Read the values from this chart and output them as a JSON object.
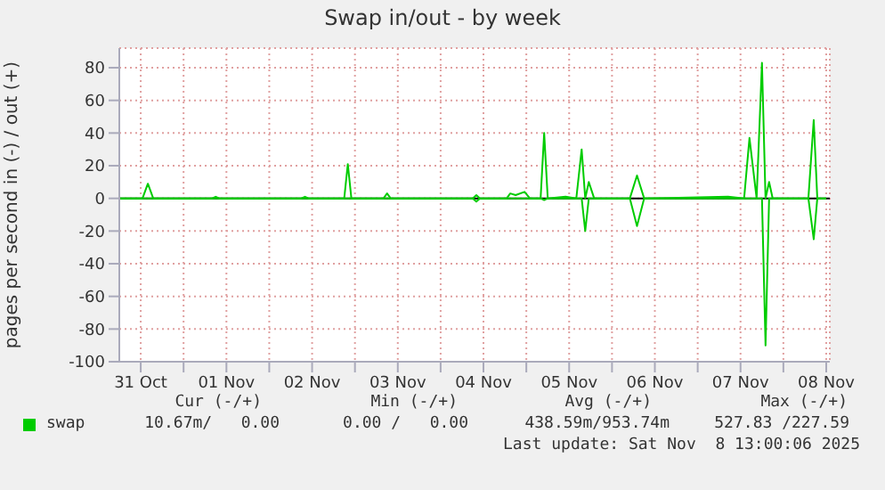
{
  "chart_data": {
    "type": "line",
    "title": "Swap in/out - by week",
    "ylabel": "pages per second in (-) / out (+)",
    "x": [
      "2025-10-31T06:00",
      "2025-10-31T12:30",
      "2025-10-31T14:00",
      "2025-10-31T15:30",
      "2025-11-01T08:00",
      "2025-11-01T09:00",
      "2025-11-01T10:00",
      "2025-11-02T09:00",
      "2025-11-02T10:00",
      "2025-11-02T11:00",
      "2025-11-02T21:00",
      "2025-11-02T22:00",
      "2025-11-02T23:00",
      "2025-11-03T08:00",
      "2025-11-03T09:00",
      "2025-11-03T10:00",
      "2025-11-04T09:00",
      "2025-11-04T10:00",
      "2025-11-04T11:00",
      "2025-11-04T18:30",
      "2025-11-04T19:30",
      "2025-11-04T21:00",
      "2025-11-04T23:30",
      "2025-11-05T01:00",
      "2025-11-05T04:00",
      "2025-11-05T05:00",
      "2025-11-05T06:00",
      "2025-11-05T11:00",
      "2025-11-05T14:00",
      "2025-11-05T15:30",
      "2025-11-05T16:30",
      "2025-11-05T17:30",
      "2025-11-05T19:00",
      "2025-11-06T05:00",
      "2025-11-06T07:00",
      "2025-11-06T09:00",
      "2025-11-07T08:30",
      "2025-11-07T13:00",
      "2025-11-07T14:30",
      "2025-11-07T16:30",
      "2025-11-07T18:00",
      "2025-11-07T19:00",
      "2025-11-07T20:00",
      "2025-11-07T21:00",
      "2025-11-08T07:00",
      "2025-11-08T08:30",
      "2025-11-08T09:30",
      "2025-11-08T12:00"
    ],
    "series": [
      {
        "name": "swap",
        "color": "#00cc00",
        "values": [
          0,
          0,
          9,
          0,
          0,
          1,
          0,
          0,
          1,
          0,
          0,
          21,
          0,
          0,
          3,
          0,
          0,
          2,
          0,
          0,
          3,
          2,
          4,
          0,
          0,
          40,
          0,
          1,
          0,
          30,
          0,
          10,
          0,
          0,
          14,
          0,
          1,
          0,
          37,
          0,
          83,
          0,
          10,
          0,
          0,
          48,
          0,
          0
        ]
      },
      {
        "color": "#00cc00",
        "values": [
          0,
          0,
          0,
          0,
          0,
          0,
          0,
          0,
          0,
          0,
          0,
          0,
          0,
          0,
          0,
          0,
          0,
          -2,
          0,
          0,
          0,
          0,
          0,
          0,
          0,
          -1,
          0,
          0,
          0,
          0,
          -20,
          0,
          0,
          0,
          -17,
          0,
          0,
          0,
          0,
          0,
          0,
          -90,
          0,
          0,
          0,
          -25,
          0,
          0
        ]
      }
    ],
    "xlim": [
      "2025-10-31T06:00",
      "2025-11-08T13:00"
    ],
    "xticks": [
      {
        "value": "2025-10-31T12:00",
        "label": "31 Oct"
      },
      {
        "value": "2025-11-01T00:00",
        "label": null
      },
      {
        "value": "2025-11-01T12:00",
        "label": "01 Nov"
      },
      {
        "value": "2025-11-02T00:00",
        "label": null
      },
      {
        "value": "2025-11-02T12:00",
        "label": "02 Nov"
      },
      {
        "value": "2025-11-03T00:00",
        "label": null
      },
      {
        "value": "2025-11-03T12:00",
        "label": "03 Nov"
      },
      {
        "value": "2025-11-04T00:00",
        "label": null
      },
      {
        "value": "2025-11-04T12:00",
        "label": "04 Nov"
      },
      {
        "value": "2025-11-05T00:00",
        "label": null
      },
      {
        "value": "2025-11-05T12:00",
        "label": "05 Nov"
      },
      {
        "value": "2025-11-06T00:00",
        "label": null
      },
      {
        "value": "2025-11-06T12:00",
        "label": "06 Nov"
      },
      {
        "value": "2025-11-07T00:00",
        "label": null
      },
      {
        "value": "2025-11-07T12:00",
        "label": "07 Nov"
      },
      {
        "value": "2025-11-08T00:00",
        "label": null
      },
      {
        "value": "2025-11-08T12:00",
        "label": "08 Nov"
      }
    ],
    "ylim": [
      -100,
      92
    ],
    "yticks": [
      -100,
      -80,
      -60,
      -40,
      -20,
      0,
      20,
      40,
      60,
      80
    ],
    "ref_lines": [
      {
        "axis": "y",
        "value": 0,
        "color": "#000000"
      }
    ],
    "grid": true,
    "legend": "bottom",
    "marker": "none",
    "line_style": "solid",
    "annotations": [
      "Cur (-/+)",
      "Min (-/+)",
      "Avg (-/+)",
      "Max (-/+)",
      "10.67m/   0.00",
      "0.00 /   0.00",
      "438.59m/953.74m",
      "527.83 /227.59",
      "Last update: Sat Nov  8 13:00:06 2025"
    ]
  }
}
